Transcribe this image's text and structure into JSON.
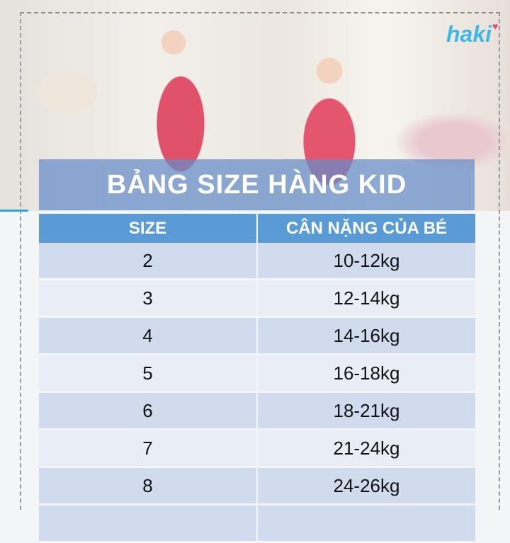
{
  "brand": {
    "logo": "haki"
  },
  "banner": {
    "title": "BẢNG SIZE HÀNG KID"
  },
  "table": {
    "headers": [
      "SIZE",
      "CÂN NẶNG CỦA BÉ"
    ],
    "rows": [
      {
        "size": "2",
        "weight": "10-12kg"
      },
      {
        "size": "3",
        "weight": "12-14kg"
      },
      {
        "size": "4",
        "weight": "14-16kg"
      },
      {
        "size": "5",
        "weight": "16-18kg"
      },
      {
        "size": "6",
        "weight": "18-21kg"
      },
      {
        "size": "7",
        "weight": "21-24kg"
      },
      {
        "size": "8",
        "weight": "24-26kg"
      }
    ]
  },
  "colors": {
    "header": "#5b9bd5",
    "row_dark": "#d0dced",
    "row_light": "#e9eef6",
    "logo": "#3fb8e6"
  }
}
